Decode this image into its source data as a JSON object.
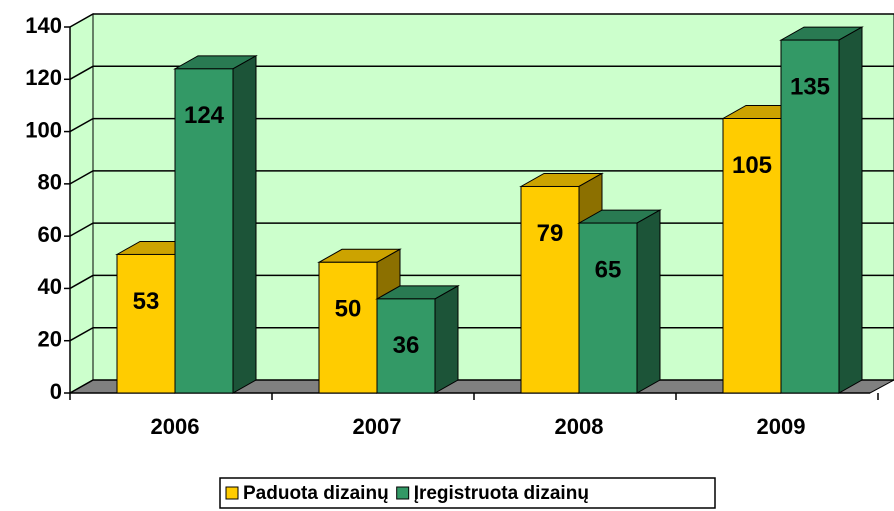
{
  "chart_data": {
    "type": "bar3d",
    "categories": [
      "2006",
      "2007",
      "2008",
      "2009"
    ],
    "series": [
      {
        "name": "Paduota dizainų",
        "color": "#ffcc00",
        "values": [
          53,
          50,
          79,
          105
        ]
      },
      {
        "name": "Įregistruota dizainų",
        "color": "#339966",
        "values": [
          124,
          36,
          65,
          135
        ]
      }
    ],
    "ylim": [
      0,
      140
    ],
    "yticks": [
      0,
      20,
      40,
      60,
      80,
      100,
      120,
      140
    ],
    "grid": true,
    "legend": "bottom"
  }
}
